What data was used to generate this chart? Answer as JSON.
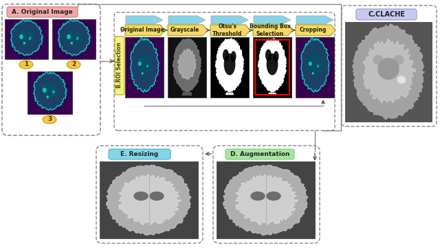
{
  "bg_color": "#ffffff",
  "section_A_label": "A. Original Image",
  "section_B_label": "B.ROI Selection",
  "section_C_label": "C.CLACHE",
  "section_D_label": "D. Augmentation",
  "section_E_label": "E. Resizing",
  "pipeline_steps": [
    "Original Image",
    "Grayscale",
    "Otsu's\nThreshold",
    "Bounding Box\nSelection",
    "Cropping"
  ],
  "step_box_color": "#f5d76e",
  "chevron_color": "#87d3e8",
  "roi_box_color": "#f5f081",
  "label_A_color": "#f4a9a8",
  "label_C_color": "#c8c8f0",
  "label_D_color": "#a8e6a0",
  "label_E_color": "#7fd7e8",
  "badge_color": "#f5c842",
  "dashed_color": "#888888",
  "arrow_color": "#555555",
  "line_color": "#888888"
}
